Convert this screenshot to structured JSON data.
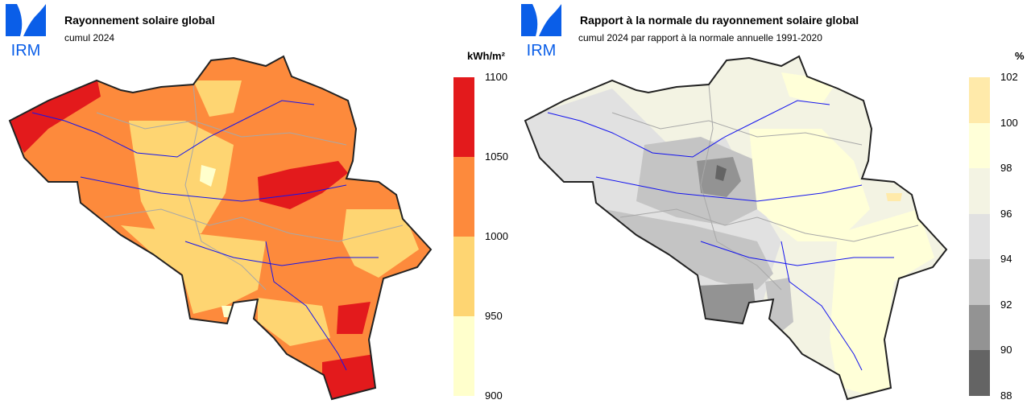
{
  "left": {
    "logo_text": "IRM",
    "title": "Rayonnement solaire global",
    "subtitle": "cumul 2024",
    "legend": {
      "unit": "kWh/m²",
      "ticks": [
        "1100",
        "1050",
        "1000",
        "950",
        "900"
      ],
      "colors": [
        "#e31a1c",
        "#fd8a3c",
        "#fed572",
        "#ffffcc"
      ]
    }
  },
  "right": {
    "logo_text": "IRM",
    "title": "Rapport à la normale du rayonnement solaire global",
    "subtitle": "cumul 2024 par rapport à la normale annuelle 1991-2020",
    "legend": {
      "unit": "%",
      "ticks": [
        "102",
        "100",
        "98",
        "96",
        "94",
        "92",
        "90",
        "88"
      ],
      "colors": [
        "#ffeaaa",
        "#ffffd8",
        "#f3f3e3",
        "#e1e1e1",
        "#c4c4c4",
        "#939393",
        "#646464"
      ]
    }
  }
}
